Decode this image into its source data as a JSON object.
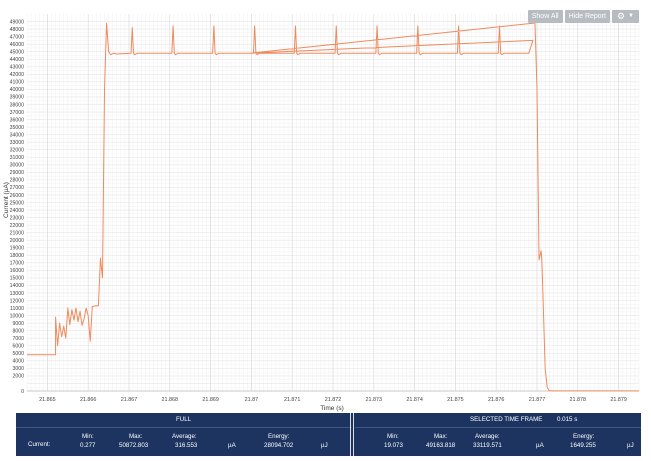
{
  "toolbar": {
    "show_all": "Show All",
    "hide_report": "Hide Report",
    "settings_icon": "gear-icon",
    "dropdown_icon": "caret-down-icon"
  },
  "chart_data": {
    "type": "line",
    "title": "",
    "xlabel": "Time (s)",
    "ylabel": "Current (µA)",
    "xlim": [
      21.8645,
      21.8795
    ],
    "ylim": [
      0,
      50000
    ],
    "grid": true,
    "line_color": "#f08a5d",
    "x_ticks": [
      "21.865",
      "21.866",
      "21.867",
      "21.868",
      "21.869",
      "21.87",
      "21.871",
      "21.872",
      "21.873",
      "21.874",
      "21.875",
      "21.876",
      "21.877",
      "21.878",
      "21.879"
    ],
    "x_tick_values": [
      21.865,
      21.866,
      21.867,
      21.868,
      21.869,
      21.87,
      21.871,
      21.872,
      21.873,
      21.874,
      21.875,
      21.876,
      21.877,
      21.878,
      21.879
    ],
    "y_ticks": [
      "0",
      "2000",
      "3000",
      "4000",
      "5000",
      "6000",
      "7000",
      "8000",
      "9000",
      "10000",
      "11000",
      "12000",
      "13000",
      "14000",
      "15000",
      "16000",
      "17000",
      "18000",
      "19000",
      "20000",
      "21000",
      "22000",
      "23000",
      "24000",
      "25000",
      "26000",
      "27000",
      "28000",
      "29000",
      "30000",
      "31000",
      "32000",
      "33000",
      "34000",
      "35000",
      "36000",
      "37000",
      "38000",
      "39000",
      "40000",
      "41000",
      "42000",
      "43000",
      "44000",
      "45000",
      "46000",
      "47000",
      "48000",
      "49000"
    ],
    "y_tick_values": [
      0,
      2000,
      3000,
      4000,
      5000,
      6000,
      7000,
      8000,
      9000,
      10000,
      11000,
      12000,
      13000,
      14000,
      15000,
      16000,
      17000,
      18000,
      19000,
      20000,
      21000,
      22000,
      23000,
      24000,
      25000,
      26000,
      27000,
      28000,
      29000,
      30000,
      31000,
      32000,
      33000,
      34000,
      35000,
      36000,
      37000,
      38000,
      39000,
      40000,
      41000,
      42000,
      43000,
      44000,
      45000,
      46000,
      47000,
      48000,
      49000
    ],
    "series": [
      {
        "x": [
          21.8645,
          21.8652,
          21.8652,
          21.86525,
          21.8653,
          21.86535,
          21.8654,
          21.86545,
          21.8655,
          21.86555,
          21.8656,
          21.86565,
          21.8657,
          21.86575,
          21.8658,
          21.86585,
          21.8659,
          21.86595,
          21.866,
          21.86605,
          21.8661,
          21.8662,
          21.86625,
          21.8663,
          21.86635,
          21.8664,
          21.86645,
          21.8665,
          21.86655,
          21.86662,
          21.8667,
          21.86705,
          21.86708,
          21.86711,
          21.86714,
          21.8672,
          21.8678,
          21.86805,
          21.86808,
          21.86811,
          21.86814,
          21.8682,
          21.8688,
          21.86905,
          21.86908,
          21.86911,
          21.86914,
          21.8692,
          21.8698,
          21.87005,
          21.87008,
          21.87011,
          21.87014,
          21.8702,
          21.8708,
          21.87105,
          21.87108,
          21.87111,
          21.87114,
          21.8712,
          21.8718,
          21.87205,
          21.87208,
          21.87211,
          21.87214,
          21.8722,
          21.8728,
          21.87305,
          21.87308,
          21.87311,
          21.87314,
          21.8732,
          21.8738,
          21.87405,
          21.87408,
          21.87411,
          21.87414,
          21.8742,
          21.8748,
          21.87505,
          21.87508,
          21.87511,
          21.87514,
          21.8752,
          21.8758,
          21.87605,
          21.87608,
          21.87611,
          21.87614,
          21.8762,
          21.8768,
          21.8769,
          21.86997,
          21.87695,
          21.877,
          21.87705,
          21.8771,
          21.87712,
          21.87715,
          21.8772,
          21.87725,
          21.8773,
          21.8774,
          21.8776,
          21.8795
        ],
        "y": [
          4800,
          4800,
          9800,
          6000,
          9000,
          7200,
          8600,
          7000,
          11000,
          8800,
          10800,
          9400,
          11000,
          9200,
          10600,
          8700,
          9600,
          11000,
          10000,
          6600,
          11200,
          11300,
          11300,
          17600,
          15000,
          40000,
          48800,
          45000,
          44600,
          44800,
          44700,
          44800,
          48200,
          44800,
          44600,
          44800,
          44800,
          44800,
          48400,
          44800,
          44600,
          44800,
          44800,
          44800,
          48400,
          44800,
          44600,
          44800,
          44800,
          44800,
          48400,
          44800,
          44600,
          44800,
          44800,
          44800,
          48400,
          44800,
          44600,
          44800,
          44800,
          44800,
          48400,
          44800,
          44600,
          44800,
          44800,
          44800,
          48400,
          44800,
          44600,
          44800,
          44800,
          44800,
          48400,
          44800,
          44600,
          44800,
          44800,
          44800,
          48400,
          44800,
          44600,
          44800,
          44800,
          44800,
          48400,
          44800,
          44600,
          44800,
          44800,
          46500,
          44800,
          48800,
          40000,
          17400,
          18600,
          17200,
          12000,
          3000,
          500,
          50,
          20,
          20,
          20
        ]
      }
    ]
  },
  "report": {
    "full_title": "FULL",
    "selected_title": "SELECTED TIME FRAME",
    "selected_duration": "0.015 s",
    "row_label": "Current:",
    "min_label": "Min:",
    "max_label": "Max:",
    "avg_label": "Average:",
    "energy_label": "Energy:",
    "unit_current": "µA",
    "unit_energy": "µJ",
    "full": {
      "min": "0.277",
      "max": "50872.803",
      "avg": "316.553",
      "energy": "28094.702"
    },
    "selected": {
      "min": "19.073",
      "max": "49163.818",
      "avg": "33119.571",
      "energy": "1649.255"
    }
  }
}
